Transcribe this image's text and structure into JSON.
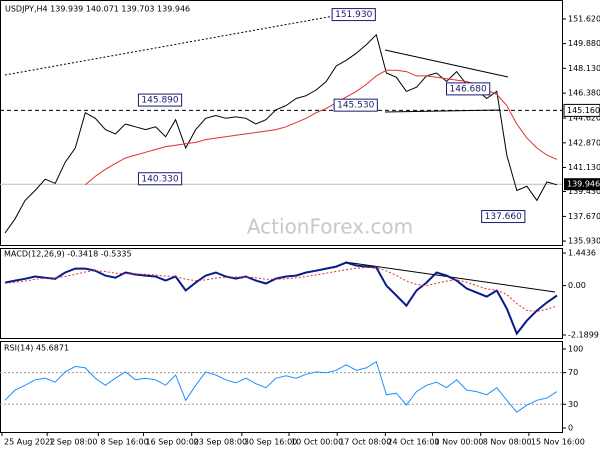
{
  "chart_data": [
    {
      "type": "line",
      "title": "USDJPY,H4  139.939 140.071 139.703 139.946",
      "xlim": [
        -0.5,
        55.5
      ],
      "ylim": [
        135.65,
        152.96
      ],
      "yticks": [
        {
          "value": 151.62,
          "label": "151.620"
        },
        {
          "value": 149.88,
          "label": "149.880"
        },
        {
          "value": 148.13,
          "label": "148.130"
        },
        {
          "value": 146.38,
          "label": "146.380"
        },
        {
          "value": 144.62,
          "label": "144.620"
        },
        {
          "value": 142.87,
          "label": "142.870"
        },
        {
          "value": 141.13,
          "label": "141.130"
        },
        {
          "value": 139.43,
          "label": "139.430"
        },
        {
          "value": 137.67,
          "label": "137.670"
        },
        {
          "value": 135.93,
          "label": "135.930"
        }
      ],
      "series": [
        {
          "color": "#000000",
          "values": [
            136.5,
            137.5,
            138.8,
            139.5,
            140.3,
            140.0,
            141.5,
            142.5,
            145.0,
            144.6,
            143.8,
            143.5,
            144.2,
            144.0,
            143.8,
            144.0,
            143.3,
            144.5,
            142.5,
            143.8,
            144.6,
            144.8,
            144.6,
            144.7,
            144.6,
            144.2,
            144.5,
            145.2,
            145.5,
            146.0,
            146.2,
            146.6,
            147.2,
            148.3,
            148.7,
            149.2,
            149.8,
            150.5,
            147.8,
            147.5,
            146.5,
            146.8,
            147.6,
            147.8,
            147.2,
            147.9,
            147.0,
            146.6,
            146.0,
            146.5,
            142.0,
            139.5,
            139.8,
            138.8,
            140.1,
            139.9
          ]
        },
        {
          "color": "#e03030",
          "values": [
            null,
            null,
            null,
            null,
            null,
            null,
            null,
            null,
            139.9,
            140.5,
            141.0,
            141.4,
            141.8,
            142.0,
            142.2,
            142.4,
            142.6,
            142.7,
            142.8,
            142.9,
            143.1,
            143.2,
            143.3,
            143.4,
            143.5,
            143.6,
            143.7,
            143.8,
            144.0,
            144.3,
            144.6,
            145.0,
            145.3,
            145.7,
            146.1,
            146.5,
            147.0,
            147.6,
            148.0,
            148.0,
            147.9,
            147.6,
            147.6,
            147.5,
            147.4,
            147.3,
            147.2,
            147.0,
            146.6,
            146.3,
            145.5,
            144.2,
            143.2,
            142.5,
            142.0,
            141.7
          ]
        }
      ],
      "annotations": [
        {
          "label": "151.930",
          "value": 151.93,
          "x": 36.9
        },
        {
          "label": "145.890",
          "value": 145.89,
          "x": 17.6
        },
        {
          "label": "140.330",
          "value": 140.33,
          "x": 17.6
        },
        {
          "label": "145.530",
          "value": 145.53,
          "x": 37.1
        },
        {
          "label": "146.680",
          "value": 146.68,
          "x": 48.3
        },
        {
          "label": "137.660",
          "value": 137.66,
          "x": 51.8
        }
      ],
      "level": {
        "value": 145.16,
        "label": "145.160"
      },
      "current_price": {
        "value": 139.946,
        "label": "139.946"
      },
      "watermark": "ActionForex.com"
    },
    {
      "type": "line",
      "title": "MACD(12,26,9) -0.3418 -0.5335",
      "xlim": [
        -0.5,
        55.5
      ],
      "ylim": [
        -2.323,
        1.665
      ],
      "yticks": [
        1.4436,
        {
          "value": 0,
          "label": "0.00"
        },
        -2.1899
      ],
      "series": [
        {
          "color": "#0a1a8c",
          "values": [
            0.13,
            0.22,
            0.3,
            0.4,
            0.35,
            0.3,
            0.58,
            0.75,
            0.75,
            0.66,
            0.44,
            0.35,
            0.58,
            0.49,
            0.44,
            0.4,
            0.22,
            0.4,
            -0.22,
            0.13,
            0.44,
            0.58,
            0.4,
            0.31,
            0.4,
            0.22,
            0.09,
            0.31,
            0.4,
            0.44,
            0.58,
            0.66,
            0.75,
            0.84,
            1.02,
            0.89,
            0.84,
            0.8,
            0,
            -0.44,
            -0.89,
            -0.22,
            0.13,
            0.58,
            0.44,
            0.22,
            -0.13,
            -0.31,
            -0.49,
            -0.22,
            -1.02,
            -2.13,
            -1.55,
            -1.11,
            -0.75,
            -0.44
          ]
        },
        {
          "color": "#e03030",
          "dashed": true,
          "values": [
            0.1,
            0.15,
            0.2,
            0.28,
            0.33,
            0.33,
            0.4,
            0.5,
            0.6,
            0.66,
            0.62,
            0.55,
            0.52,
            0.52,
            0.5,
            0.47,
            0.42,
            0.4,
            0.28,
            0.22,
            0.25,
            0.33,
            0.38,
            0.38,
            0.38,
            0.35,
            0.28,
            0.28,
            0.3,
            0.34,
            0.4,
            0.47,
            0.55,
            0.63,
            0.7,
            0.77,
            0.8,
            0.8,
            0.65,
            0.45,
            0.2,
            0.05,
            0,
            0.1,
            0.2,
            0.25,
            0.15,
            0.0,
            -0.15,
            -0.2,
            -0.4,
            -0.8,
            -1.1,
            -1.15,
            -1.05,
            -0.9
          ]
        }
      ]
    },
    {
      "type": "line",
      "title": "RSI(14) 45.6871",
      "xlim": [
        -0.5,
        55.5
      ],
      "ylim": [
        -5.1,
        110.1
      ],
      "yticks": [
        100,
        70,
        30,
        0
      ],
      "levels": [
        70,
        30
      ],
      "series": [
        {
          "color": "#1e90ff",
          "values": [
            35,
            48,
            54,
            61,
            63,
            58,
            71,
            78,
            76,
            63,
            54,
            63,
            71,
            61,
            63,
            61,
            54,
            67,
            35,
            54,
            71,
            67,
            61,
            57,
            63,
            56,
            51,
            63,
            66,
            63,
            68,
            71,
            70,
            73,
            80,
            73,
            76,
            84,
            42,
            44,
            29,
            46,
            54,
            58,
            51,
            61,
            48,
            46,
            42,
            51,
            35,
            20,
            29,
            35,
            38,
            46
          ]
        }
      ],
      "xticks": [
        {
          "value": -0.3,
          "label": "25 Aug 2022"
        },
        {
          "value": 4.2,
          "label": "1 Sep 08:00"
        },
        {
          "value": 9.3,
          "label": "8 Sep 16:00"
        },
        {
          "value": 13.8,
          "label": "16 Sep 00:00"
        },
        {
          "value": 18.6,
          "label": "23 Sep 08:00"
        },
        {
          "value": 23.6,
          "label": "30 Sep 16:00"
        },
        {
          "value": 28.3,
          "label": "10 Oct 00:00"
        },
        {
          "value": 33.1,
          "label": "17 Oct 08:00"
        },
        {
          "value": 37.9,
          "label": "24 Oct 16:00"
        },
        {
          "value": 42.6,
          "label": "1 Nov 00:00"
        },
        {
          "value": 47.4,
          "label": "8 Nov 08:00"
        },
        {
          "value": 52.2,
          "label": "15 Nov 16:00"
        }
      ]
    }
  ]
}
